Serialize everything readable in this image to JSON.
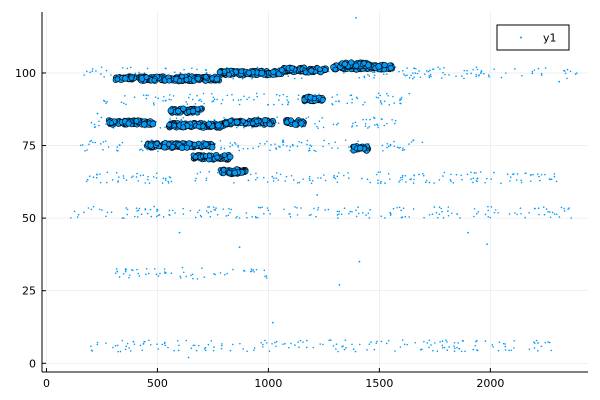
{
  "colors": {
    "marker": "#009AF9",
    "stroke": "#000000",
    "grid": "#e6e6e6"
  },
  "chart_data": {
    "type": "scatter",
    "title": "",
    "xlabel": "",
    "ylabel": "",
    "xlim": [
      -20,
      2440
    ],
    "ylim": [
      -3,
      121
    ],
    "xticks": [
      0,
      500,
      1000,
      1500,
      2000
    ],
    "yticks": [
      0,
      25,
      50,
      75,
      100
    ],
    "grid": true,
    "legend": {
      "position": "top-right",
      "entries": [
        "y1"
      ]
    },
    "series": [
      {
        "name": "y1",
        "dense_bands": [
          {
            "x": [
              310,
              780
            ],
            "y": 98
          },
          {
            "x": [
              780,
              1060
            ],
            "y": 100
          },
          {
            "x": [
              1050,
              1260
            ],
            "y": 101
          },
          {
            "x": [
              1290,
              1560
            ],
            "y": 102
          },
          {
            "x": [
              1330,
              1450
            ],
            "y": 103
          },
          {
            "x": [
              560,
              700
            ],
            "y": 87
          },
          {
            "x": [
              1160,
              1250
            ],
            "y": 91
          },
          {
            "x": [
              280,
              480
            ],
            "y": 83
          },
          {
            "x": [
              550,
              810
            ],
            "y": 82
          },
          {
            "x": [
              800,
              1020
            ],
            "y": 83
          },
          {
            "x": [
              1080,
              1160
            ],
            "y": 83
          },
          {
            "x": [
              450,
              750
            ],
            "y": 75
          },
          {
            "x": [
              660,
              830
            ],
            "y": 71
          },
          {
            "x": [
              780,
              900
            ],
            "y": 66
          },
          {
            "x": [
              1380,
              1450
            ],
            "y": 74
          }
        ],
        "sparse_bands": [
          {
            "x": [
              150,
              2400
            ],
            "y": 100
          },
          {
            "x": [
              250,
              1650
            ],
            "y": 91
          },
          {
            "x": [
              200,
              1600
            ],
            "y": 83
          },
          {
            "x": [
              150,
              1700
            ],
            "y": 75
          },
          {
            "x": [
              150,
              2300
            ],
            "y": 64
          },
          {
            "x": [
              100,
              2400
            ],
            "y": 52
          },
          {
            "x": [
              300,
              1000
            ],
            "y": 31
          },
          {
            "x": [
              200,
              2300
            ],
            "y": 6
          }
        ],
        "scattered_points": [
          [
            1395,
            119
          ],
          [
            230,
            86
          ],
          [
            910,
            63
          ],
          [
            1295,
            64
          ],
          [
            2310,
            97
          ],
          [
            1220,
            58
          ],
          [
            600,
            45
          ],
          [
            870,
            40
          ],
          [
            1410,
            35
          ],
          [
            1900,
            45
          ],
          [
            2215,
            7
          ],
          [
            1985,
            41
          ],
          [
            1020,
            14
          ],
          [
            640,
            2
          ],
          [
            1860,
            5
          ],
          [
            1320,
            27
          ]
        ]
      }
    ]
  }
}
